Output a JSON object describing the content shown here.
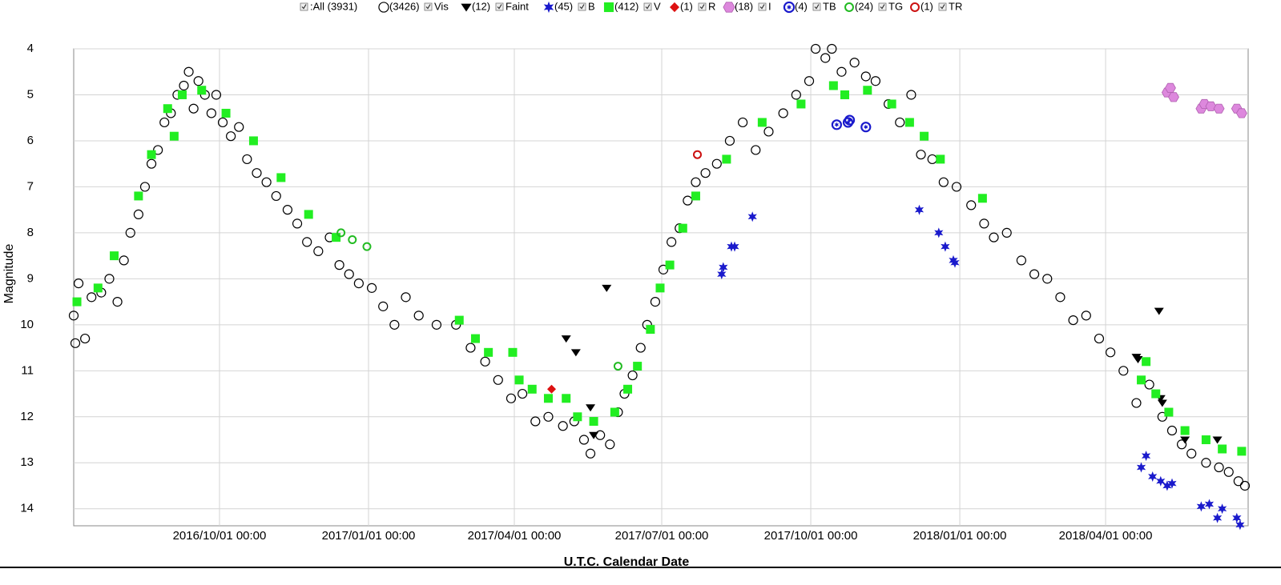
{
  "chart_data": {
    "type": "scatter",
    "legend_all": ":All (3931)",
    "xlabel": "U.T.C. Calendar Date",
    "ylabel": "Magnitude",
    "xlim": [
      "2016-07-03",
      "2018-06-28"
    ],
    "ylim": [
      14.37,
      4
    ],
    "xticks": [
      {
        "value": "2016-10-01",
        "label": "2016/10/01 00:00"
      },
      {
        "value": "2017-01-01",
        "label": "2017/01/01 00:00"
      },
      {
        "value": "2017-04-01",
        "label": "2017/04/01 00:00"
      },
      {
        "value": "2017-07-01",
        "label": "2017/07/01 00:00"
      },
      {
        "value": "2017-10-01",
        "label": "2017/10/01 00:00"
      },
      {
        "value": "2018-01-01",
        "label": "2018/01/01 00:00"
      },
      {
        "value": "2018-04-01",
        "label": "2018/04/01 00:00"
      }
    ],
    "yticks": [
      4,
      5,
      6,
      7,
      8,
      9,
      10,
      11,
      12,
      13,
      14
    ],
    "grid": true,
    "series": [
      {
        "name": "Vis",
        "count": "(3426)",
        "marker": "open-circle",
        "color": "#000000",
        "x": [
          "2016-07-03",
          "2016-07-04",
          "2016-07-06",
          "2016-07-10",
          "2016-07-14",
          "2016-07-20",
          "2016-07-25",
          "2016-07-30",
          "2016-08-03",
          "2016-08-07",
          "2016-08-12",
          "2016-08-16",
          "2016-08-20",
          "2016-08-24",
          "2016-08-28",
          "2016-09-01",
          "2016-09-05",
          "2016-09-09",
          "2016-09-12",
          "2016-09-15",
          "2016-09-18",
          "2016-09-22",
          "2016-09-26",
          "2016-09-29",
          "2016-10-03",
          "2016-10-08",
          "2016-10-13",
          "2016-10-18",
          "2016-10-24",
          "2016-10-30",
          "2016-11-05",
          "2016-11-12",
          "2016-11-18",
          "2016-11-24",
          "2016-12-01",
          "2016-12-08",
          "2016-12-14",
          "2016-12-20",
          "2016-12-26",
          "2017-01-03",
          "2017-01-10",
          "2017-01-17",
          "2017-01-24",
          "2017-02-01",
          "2017-02-12",
          "2017-02-24",
          "2017-03-05",
          "2017-03-14",
          "2017-03-22",
          "2017-03-30",
          "2017-04-06",
          "2017-04-14",
          "2017-04-22",
          "2017-05-01",
          "2017-05-08",
          "2017-05-14",
          "2017-05-18",
          "2017-05-24",
          "2017-05-30",
          "2017-06-04",
          "2017-06-08",
          "2017-06-13",
          "2017-06-18",
          "2017-06-22",
          "2017-06-27",
          "2017-07-02",
          "2017-07-07",
          "2017-07-12",
          "2017-07-17",
          "2017-07-22",
          "2017-07-28",
          "2017-08-04",
          "2017-08-12",
          "2017-08-20",
          "2017-08-28",
          "2017-09-05",
          "2017-09-14",
          "2017-09-22",
          "2017-09-30",
          "2017-10-04",
          "2017-10-10",
          "2017-10-14",
          "2017-10-20",
          "2017-10-28",
          "2017-11-04",
          "2017-11-10",
          "2017-11-18",
          "2017-11-25",
          "2017-12-02",
          "2017-12-08",
          "2017-12-15",
          "2017-12-22",
          "2017-12-30",
          "2018-01-08",
          "2018-01-16",
          "2018-01-22",
          "2018-01-30",
          "2018-02-08",
          "2018-02-16",
          "2018-02-24",
          "2018-03-04",
          "2018-03-12",
          "2018-03-20",
          "2018-03-28",
          "2018-04-04",
          "2018-04-12",
          "2018-04-20",
          "2018-04-28",
          "2018-05-06",
          "2018-05-12",
          "2018-05-18",
          "2018-05-24",
          "2018-06-02",
          "2018-06-10",
          "2018-06-16",
          "2018-06-22",
          "2018-06-26"
        ],
        "values": [
          9.8,
          10.4,
          9.1,
          10.3,
          9.4,
          9.3,
          9.0,
          9.5,
          8.6,
          8.0,
          7.6,
          7.0,
          6.5,
          6.2,
          5.6,
          5.4,
          5.0,
          4.8,
          4.5,
          5.3,
          4.7,
          5.0,
          5.4,
          5.0,
          5.6,
          5.9,
          5.7,
          6.4,
          6.7,
          6.9,
          7.2,
          7.5,
          7.8,
          8.2,
          8.4,
          8.1,
          8.7,
          8.9,
          9.1,
          9.2,
          9.6,
          10.0,
          9.4,
          9.8,
          10.0,
          10.0,
          10.5,
          10.8,
          11.2,
          11.6,
          11.5,
          12.1,
          12.0,
          12.2,
          12.1,
          12.5,
          12.8,
          12.4,
          12.6,
          11.9,
          11.5,
          11.1,
          10.5,
          10.0,
          9.5,
          8.8,
          8.2,
          7.9,
          7.3,
          6.9,
          6.7,
          6.5,
          6.0,
          5.6,
          6.2,
          5.8,
          5.4,
          5.0,
          4.7,
          4.0,
          4.2,
          4.0,
          4.5,
          4.3,
          4.6,
          4.7,
          5.2,
          5.6,
          5.0,
          6.3,
          6.4,
          6.9,
          7.0,
          7.4,
          7.8,
          8.1,
          8.0,
          8.6,
          8.9,
          9.0,
          9.4,
          9.9,
          9.8,
          10.3,
          10.6,
          11.0,
          11.7,
          11.3,
          12.0,
          12.3,
          12.6,
          12.8,
          13.0,
          13.1,
          13.2,
          13.4,
          13.5
        ]
      },
      {
        "name": "Faint",
        "count": "(12)",
        "marker": "triangle-down",
        "color": "#000000",
        "x": [
          "2017-05-03",
          "2017-05-09",
          "2017-05-18",
          "2017-05-20",
          "2017-05-28",
          "2018-04-20",
          "2018-04-21",
          "2018-05-04",
          "2018-05-05",
          "2018-05-06",
          "2018-05-20",
          "2018-06-09"
        ],
        "values": [
          10.3,
          10.6,
          11.8,
          12.4,
          9.2,
          10.7,
          10.75,
          9.7,
          11.6,
          11.7,
          12.5,
          12.5
        ]
      },
      {
        "name": "B",
        "count": "(45)",
        "marker": "star",
        "color": "#1a1acc",
        "x": [
          "2017-08-07",
          "2017-08-08",
          "2017-08-13",
          "2017-08-15",
          "2017-08-26",
          "2017-12-07",
          "2017-12-19",
          "2017-12-23",
          "2017-12-28",
          "2017-12-29",
          "2018-04-23",
          "2018-04-26",
          "2018-04-30",
          "2018-05-05",
          "2018-05-09",
          "2018-05-12",
          "2018-05-30",
          "2018-06-04",
          "2018-06-09",
          "2018-06-12",
          "2018-06-21",
          "2018-06-23"
        ],
        "values": [
          8.9,
          8.75,
          8.3,
          8.3,
          7.65,
          7.5,
          8.0,
          8.3,
          8.6,
          8.65,
          13.1,
          12.85,
          13.3,
          13.4,
          13.5,
          13.45,
          13.95,
          13.9,
          14.2,
          14.0,
          14.2,
          14.35
        ]
      },
      {
        "name": "V",
        "count": "(412)",
        "marker": "square",
        "color": "#22ee22",
        "x": [
          "2016-07-05",
          "2016-07-18",
          "2016-07-28",
          "2016-08-12",
          "2016-08-20",
          "2016-08-30",
          "2016-09-08",
          "2016-09-03",
          "2016-09-20",
          "2016-10-05",
          "2016-10-22",
          "2016-11-08",
          "2016-11-25",
          "2016-12-12",
          "2017-02-26",
          "2017-03-08",
          "2017-03-16",
          "2017-03-31",
          "2017-04-04",
          "2017-04-12",
          "2017-04-22",
          "2017-05-03",
          "2017-05-10",
          "2017-05-20",
          "2017-06-02",
          "2017-06-10",
          "2017-06-16",
          "2017-06-24",
          "2017-06-30",
          "2017-07-06",
          "2017-07-14",
          "2017-07-22",
          "2017-08-10",
          "2017-09-01",
          "2017-09-25",
          "2017-10-15",
          "2017-10-22",
          "2017-11-05",
          "2017-11-20",
          "2017-12-01",
          "2017-12-10",
          "2017-12-20",
          "2018-01-15",
          "2018-04-23",
          "2018-04-26",
          "2018-05-02",
          "2018-05-10",
          "2018-05-20",
          "2018-06-02",
          "2018-06-12",
          "2018-06-24"
        ],
        "values": [
          9.5,
          9.2,
          8.5,
          7.2,
          6.3,
          5.3,
          5.0,
          5.9,
          4.9,
          5.4,
          6.0,
          6.8,
          7.6,
          8.1,
          9.9,
          10.3,
          10.6,
          10.6,
          11.2,
          11.4,
          11.6,
          11.6,
          12.0,
          12.1,
          11.9,
          11.4,
          10.9,
          10.1,
          9.2,
          8.7,
          7.9,
          7.2,
          6.4,
          5.6,
          5.2,
          4.8,
          5.0,
          4.9,
          5.2,
          5.6,
          5.9,
          6.4,
          7.25,
          11.2,
          10.8,
          11.5,
          11.9,
          12.3,
          12.5,
          12.7,
          12.75
        ]
      },
      {
        "name": "R",
        "count": "(1)",
        "marker": "diamond",
        "color": "#dd1111",
        "x": [
          "2017-04-24"
        ],
        "values": [
          11.4
        ]
      },
      {
        "name": "I",
        "count": "(18)",
        "marker": "hexagon",
        "color": "#dd88dd",
        "x": [
          "2018-05-09",
          "2018-05-11",
          "2018-05-13",
          "2018-05-30",
          "2018-06-01",
          "2018-06-05",
          "2018-06-10",
          "2018-06-21",
          "2018-06-24"
        ],
        "values": [
          4.95,
          4.85,
          5.05,
          5.3,
          5.2,
          5.25,
          5.3,
          5.3,
          5.4
        ]
      },
      {
        "name": "TB",
        "count": "(4)",
        "marker": "open-star-circle",
        "color": "#1a1acc",
        "x": [
          "2017-10-17",
          "2017-10-24",
          "2017-10-25",
          "2017-11-04"
        ],
        "values": [
          5.65,
          5.6,
          5.55,
          5.7
        ]
      },
      {
        "name": "TG",
        "count": "(24)",
        "marker": "open-circle-thick",
        "color": "#22bb22",
        "x": [
          "2016-12-22",
          "2016-12-31",
          "2017-06-04",
          "2016-12-15"
        ],
        "values": [
          8.15,
          8.3,
          10.9,
          8.0
        ]
      },
      {
        "name": "TR",
        "count": "(1)",
        "marker": "open-circle-thick",
        "color": "#cc1111",
        "x": [
          "2017-07-23"
        ],
        "values": [
          6.3
        ]
      }
    ]
  }
}
